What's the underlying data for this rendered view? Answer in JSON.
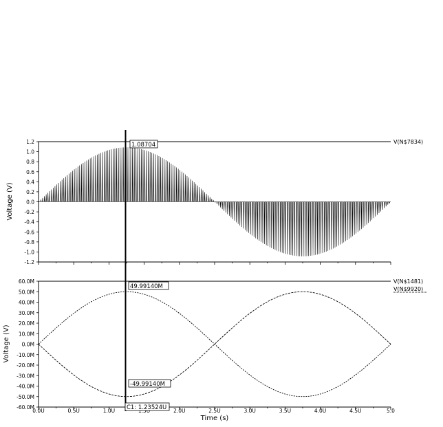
{
  "chart_data": [
    {
      "type": "line",
      "ylabel": "Voltage (V)",
      "ylim": [
        -1.2,
        1.2
      ],
      "yticks": [
        "1.2",
        "1.0",
        "0.8",
        "0.6",
        "0.4",
        "0.2",
        "0.0",
        "-0.2",
        "-0.4",
        "-0.6",
        "-0.8",
        "-1.0",
        "-1.2"
      ],
      "series": [
        {
          "name": "V(N$7834)",
          "description": "Half-wave switched sine: positive pulse bursts with sine envelope from 0 to 2.5u, negative pulse bursts from 2.5u to 5u, pulse period 0.025u",
          "envelope_amplitude": 1.08704,
          "envelope_period_s": 5e-06,
          "pulse_period_s": 2.5e-08
        }
      ],
      "cursor_label": "1.08704"
    },
    {
      "type": "line",
      "ylabel": "Voltage (V)",
      "ylim": [
        -60,
        60
      ],
      "yticks": [
        "60.0M",
        "50.0M",
        "40.0M",
        "30.0M",
        "20.0M",
        "10.0M",
        "0.0M",
        "-10.0M",
        "-20.0M",
        "-30.0M",
        "-40.0M",
        "-50.0M",
        "-60.0M"
      ],
      "series": [
        {
          "name": "V(N$1481)",
          "amplitude": 49.9914,
          "period_s": 5e-06,
          "phase": "sine",
          "x": [
            0,
            1.25,
            2.5,
            3.75,
            5.0
          ],
          "y": [
            0,
            49.9914,
            0,
            -49.9914,
            0
          ]
        },
        {
          "name": "V(N$9920)",
          "amplitude": 49.9914,
          "period_s": 5e-06,
          "phase": "inverted sine",
          "x": [
            0,
            1.25,
            2.5,
            3.75,
            5.0
          ],
          "y": [
            0,
            -49.9914,
            0,
            49.9914,
            0
          ]
        }
      ],
      "cursor_label_top": "49.99140M",
      "cursor_label_bottom": "-49.99140M"
    }
  ],
  "xaxis": {
    "label": "Time (s)",
    "xlim": [
      0,
      5.0
    ],
    "ticks": [
      "0.0U",
      "0.5U",
      "1.0U",
      "1.5U",
      "2.0U",
      "2.5U",
      "3.0U",
      "3.5U",
      "4.0U",
      "4.5U",
      "5.0"
    ]
  },
  "cursor": {
    "x": 1.23524,
    "label": "C1: 1.23524U"
  }
}
